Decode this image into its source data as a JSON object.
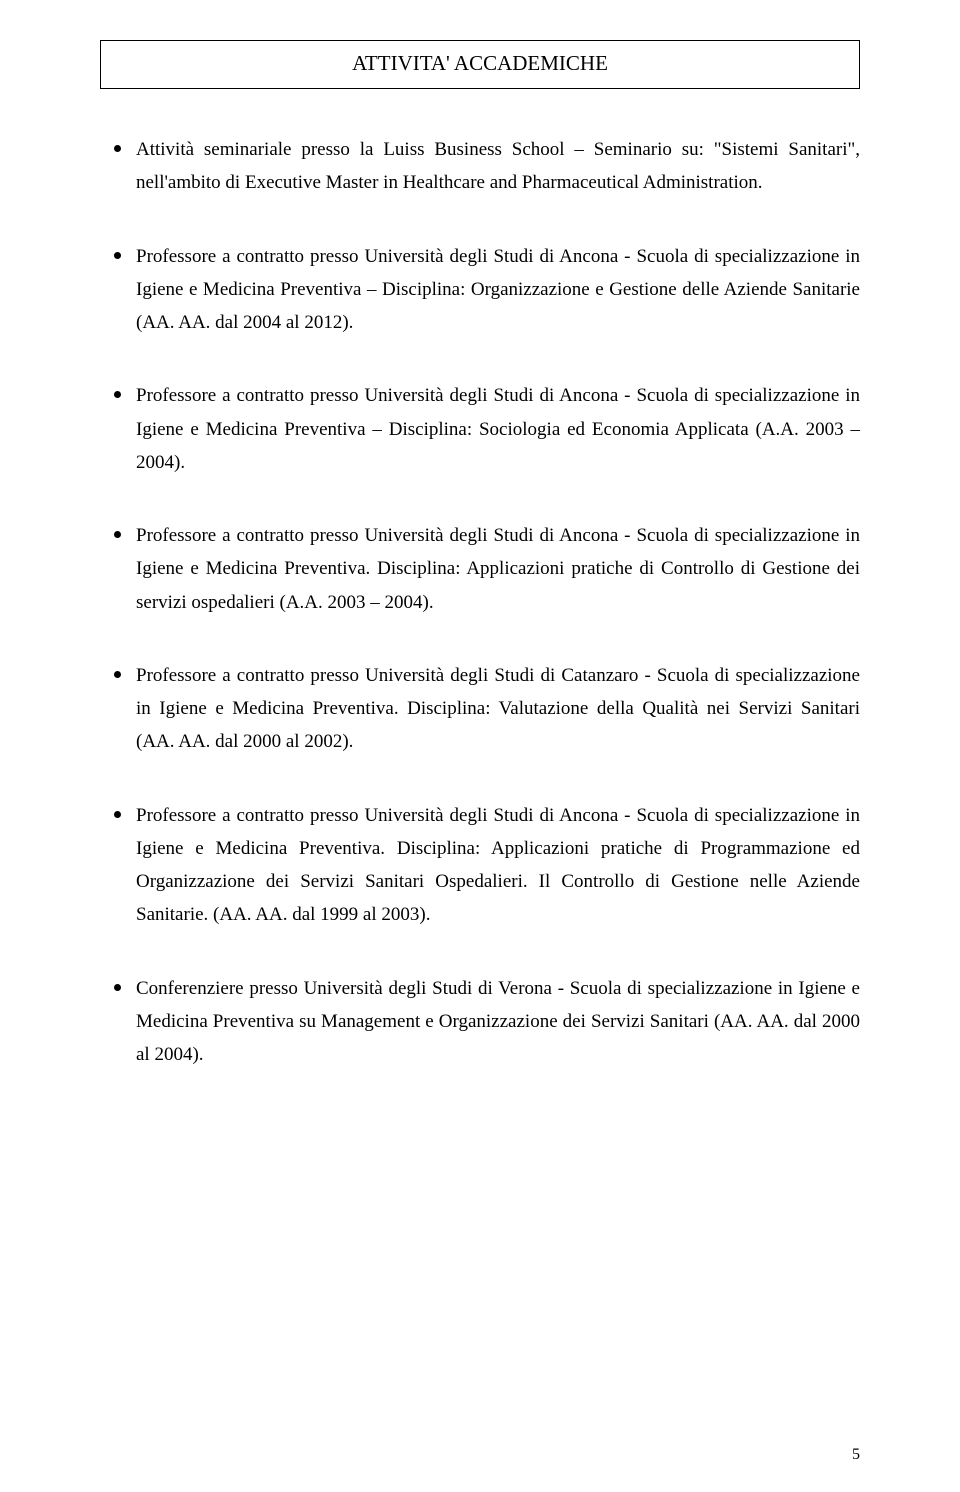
{
  "header": {
    "title": "ATTIVITA' ACCADEMICHE"
  },
  "bullets": [
    {
      "text": "Attività seminariale presso la Luiss Business School – Seminario su: \"Sistemi Sanitari\", nell'ambito di Executive Master in Healthcare and Pharmaceutical Administration."
    },
    {
      "text": "Professore a contratto  presso Università degli Studi di Ancona - Scuola di specializzazione in Igiene e Medicina Preventiva – Disciplina: Organizzazione e Gestione delle Aziende Sanitarie (AA. AA. dal 2004 al 2012)."
    },
    {
      "text": "Professore a contratto presso Università degli Studi di Ancona - Scuola di specializzazione in Igiene e Medicina Preventiva – Disciplina: Sociologia ed Economia Applicata (A.A. 2003 – 2004)."
    },
    {
      "text": "Professore a contratto  presso Università degli Studi di Ancona - Scuola di specializzazione in Igiene e Medicina Preventiva. Disciplina: Applicazioni pratiche di Controllo di Gestione dei servizi ospedalieri (A.A. 2003 – 2004)."
    },
    {
      "text": "Professore a contratto presso Università degli Studi di Catanzaro - Scuola di specializzazione in Igiene e Medicina Preventiva. Disciplina: Valutazione della Qualità nei Servizi Sanitari (AA. AA. dal 2000 al 2002)."
    },
    {
      "text": "Professore a contratto presso Università degli Studi di Ancona - Scuola di specializzazione in Igiene e Medicina Preventiva. Disciplina: Applicazioni pratiche di Programmazione ed Organizzazione dei Servizi Sanitari Ospedalieri. Il Controllo di Gestione nelle Aziende Sanitarie.  (AA. AA. dal 1999 al 2003)."
    },
    {
      "text": "Conferenziere presso Università degli Studi di Verona - Scuola di specializzazione in Igiene e Medicina Preventiva su Management e Organizzazione dei Servizi Sanitari (AA. AA. dal 2000 al 2004)."
    }
  ],
  "page_number": "5"
}
